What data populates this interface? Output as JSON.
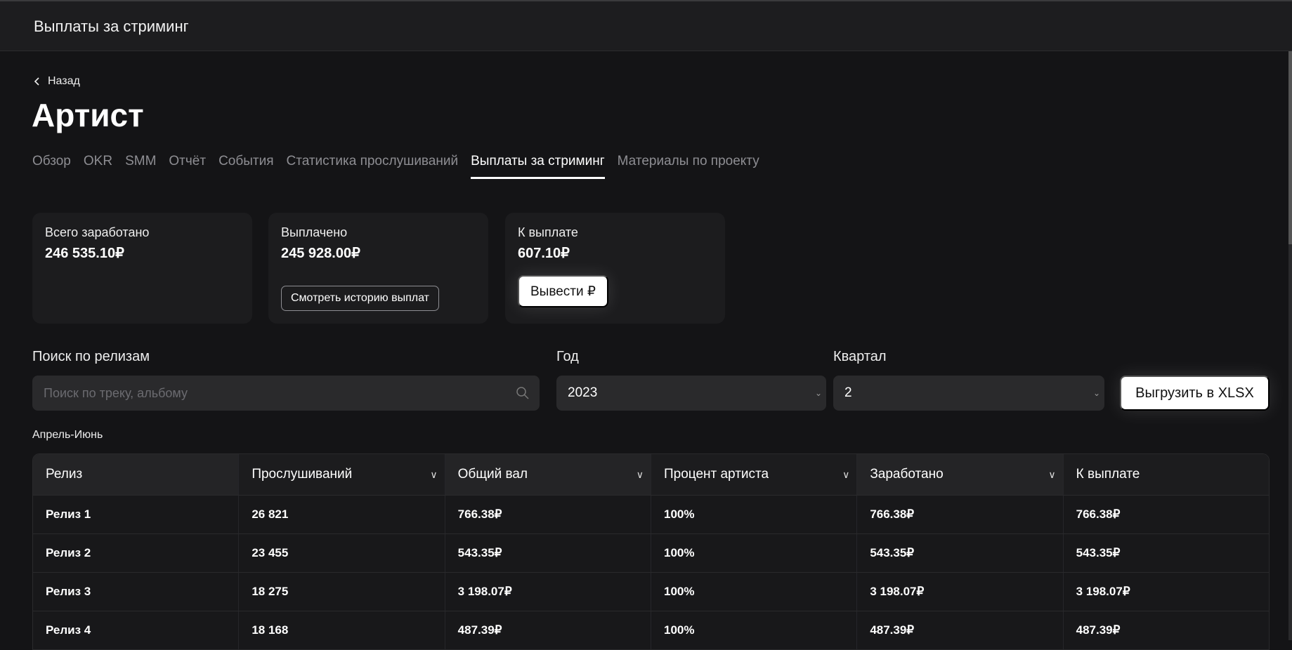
{
  "topbar": {
    "title": "Выплаты за стриминг"
  },
  "back_label": "Назад",
  "page_title": "Артист",
  "tabs": [
    {
      "label": "Обзор",
      "active": false
    },
    {
      "label": "OKR",
      "active": false
    },
    {
      "label": "SMM",
      "active": false
    },
    {
      "label": "Отчёт",
      "active": false
    },
    {
      "label": "События",
      "active": false
    },
    {
      "label": "Статистика прослушиваний",
      "active": false
    },
    {
      "label": "Выплаты за стриминг",
      "active": true
    },
    {
      "label": "Материалы по проекту",
      "active": false
    }
  ],
  "cards": {
    "total": {
      "label": "Всего заработано",
      "value": "246 535.10₽"
    },
    "paid": {
      "label": "Выплачено",
      "value": "245 928.00₽",
      "button": "Смотреть историю выплат"
    },
    "due": {
      "label": "К выплате",
      "value": "607.10₽",
      "button": "Вывести ₽"
    }
  },
  "filters": {
    "search": {
      "label": "Поиск по релизам",
      "placeholder": "Поиск по треку, альбому"
    },
    "year": {
      "label": "Год",
      "value": "2023"
    },
    "quarter": {
      "label": "Квартал",
      "value": "2"
    },
    "export": "Выгрузить в XLSX"
  },
  "period": "Апрель-Июнь",
  "table": {
    "columns": [
      "Релиз",
      "Прослушиваний",
      "Общий вал",
      "Процент артиста",
      "Заработано",
      "К выплате"
    ],
    "rows": [
      [
        "Релиз 1",
        "26 821",
        "766.38₽",
        "100%",
        "766.38₽",
        "766.38₽"
      ],
      [
        "Релиз 2",
        "23 455",
        "543.35₽",
        "100%",
        "543.35₽",
        "543.35₽"
      ],
      [
        "Релиз 3",
        "18 275",
        "3 198.07₽",
        "100%",
        "3 198.07₽",
        "3 198.07₽"
      ],
      [
        "Релиз 4",
        "18 168",
        "487.39₽",
        "100%",
        "487.39₽",
        "487.39₽"
      ]
    ]
  }
}
